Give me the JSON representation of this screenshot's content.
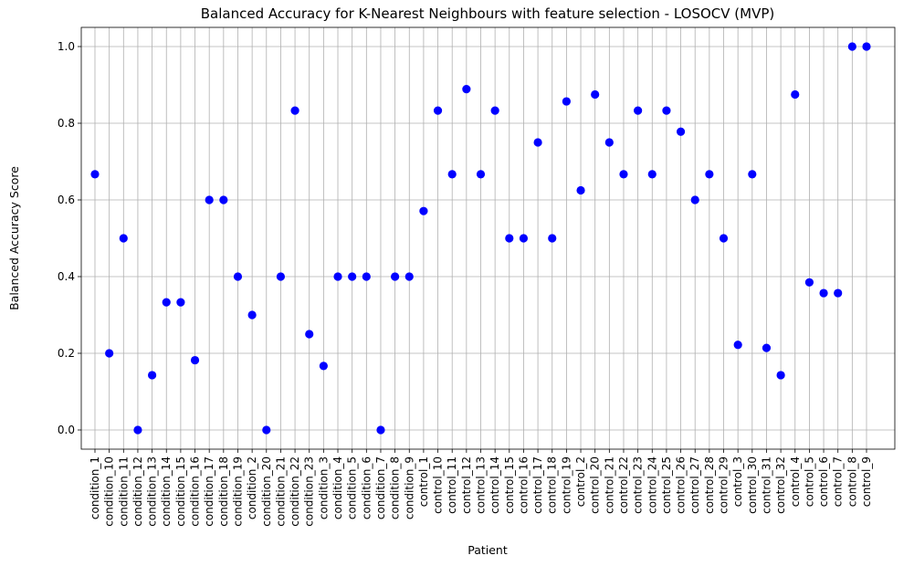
{
  "chart_data": {
    "type": "scatter",
    "title": "Balanced Accuracy for K-Nearest Neighbours with feature selection - LOSOCV (MVP)",
    "xlabel": "Patient",
    "ylabel": "Balanced Accuracy Score",
    "ylim": [
      -0.05,
      1.05
    ],
    "yticks": [
      0.0,
      0.2,
      0.4,
      0.6,
      0.8,
      1.0
    ],
    "ytick_labels": [
      "0.0",
      "0.2",
      "0.4",
      "0.6",
      "0.8",
      "1.0"
    ],
    "grid": true,
    "marker_color": "#0000ff",
    "categories": [
      "condition_1",
      "condition_10",
      "condition_11",
      "condition_12",
      "condition_13",
      "condition_14",
      "condition_15",
      "condition_16",
      "condition_17",
      "condition_18",
      "condition_19",
      "condition_2",
      "condition_20",
      "condition_21",
      "condition_22",
      "condition_23",
      "condition_3",
      "condition_4",
      "condition_5",
      "condition_6",
      "condition_7",
      "condition_8",
      "condition_9",
      "control_1",
      "control_10",
      "control_11",
      "control_12",
      "control_13",
      "control_14",
      "control_15",
      "control_16",
      "control_17",
      "control_18",
      "control_19",
      "control_2",
      "control_20",
      "control_21",
      "control_22",
      "control_23",
      "control_24",
      "control_25",
      "control_26",
      "control_27",
      "control_28",
      "control_29",
      "control_3",
      "control_30",
      "control_31",
      "control_32",
      "control_4",
      "control_5",
      "control_6",
      "control_7",
      "control_8",
      "control_9"
    ],
    "values": [
      0.667,
      0.2,
      0.5,
      0.0,
      0.143,
      0.333,
      0.333,
      0.182,
      0.6,
      0.6,
      0.4,
      0.3,
      0.0,
      0.4,
      0.833,
      0.25,
      0.167,
      0.4,
      0.4,
      0.4,
      0.0,
      0.4,
      0.4,
      0.571,
      0.833,
      0.667,
      0.889,
      0.667,
      0.833,
      0.5,
      0.5,
      0.75,
      0.5,
      0.857,
      0.625,
      0.875,
      0.75,
      0.667,
      0.833,
      0.667,
      0.833,
      0.778,
      0.6,
      0.667,
      0.5,
      0.222,
      0.667,
      0.214,
      0.143,
      0.875,
      0.385,
      0.357,
      0.357,
      1.0,
      1.0
    ]
  }
}
